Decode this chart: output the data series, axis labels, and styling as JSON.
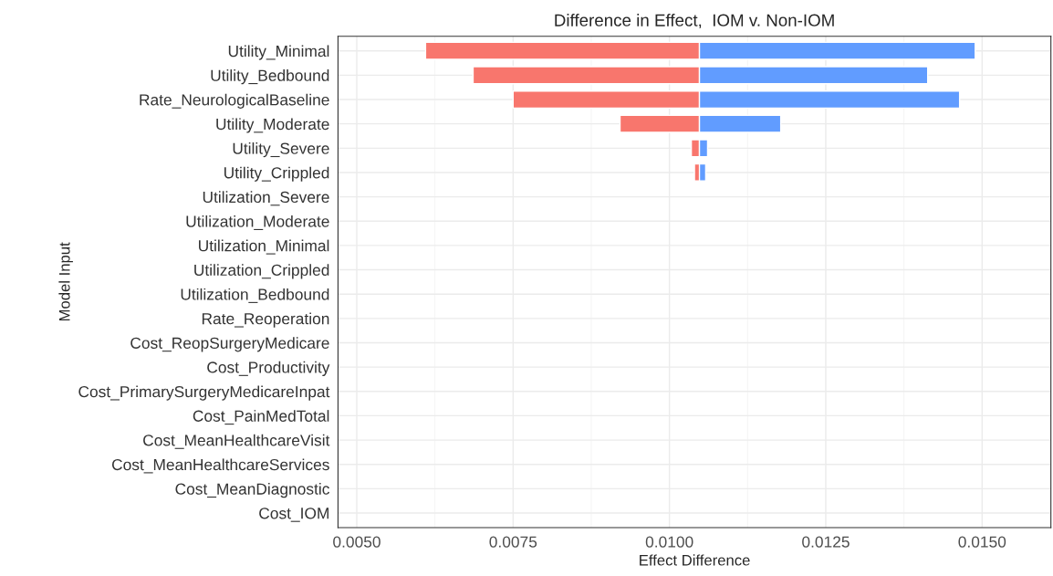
{
  "chart_data": {
    "type": "bar",
    "orientation": "horizontal",
    "title": "Difference in Effect,  IOM v. Non-IOM",
    "xlabel": "Effect Difference",
    "ylabel": "Model Input",
    "categories": [
      "Utility_Minimal",
      "Utility_Bedbound",
      "Rate_NeurologicalBaseline",
      "Utility_Moderate",
      "Utility_Severe",
      "Utility_Crippled",
      "Utilization_Severe",
      "Utilization_Moderate",
      "Utilization_Minimal",
      "Utilization_Crippled",
      "Utilization_Bedbound",
      "Rate_Reoperation",
      "Cost_ReopSurgeryMedicare",
      "Cost_Productivity",
      "Cost_PrimarySurgeryMedicareInpat",
      "Cost_PainMedTotal",
      "Cost_MeanHealthcareVisit",
      "Cost_MeanHealthcareServices",
      "Cost_MeanDiagnostic",
      "Cost_IOM"
    ],
    "series": [
      {
        "color": "#f8766d",
        "base": [
          0.0061,
          0.00686,
          0.0075,
          0.00921,
          0.01035,
          0.0104,
          null,
          null,
          null,
          null,
          null,
          null,
          null,
          null,
          null,
          null,
          null,
          null,
          null,
          null
        ],
        "values": [
          0.00438,
          0.00362,
          0.00298,
          0.00127,
          0.00013,
          0.0001,
          null,
          null,
          null,
          null,
          null,
          null,
          null,
          null,
          null,
          null,
          null,
          null,
          null,
          null
        ]
      },
      {
        "color": "#619cff",
        "base": [
          0.01048,
          0.01048,
          0.01048,
          0.01048,
          0.01048,
          0.01048,
          null,
          null,
          null,
          null,
          null,
          null,
          null,
          null,
          null,
          null,
          null,
          null,
          null,
          null
        ],
        "values": [
          0.00441,
          0.00365,
          0.00416,
          0.0013,
          0.00013,
          0.0001,
          null,
          null,
          null,
          null,
          null,
          null,
          null,
          null,
          null,
          null,
          null,
          null,
          null,
          null
        ]
      }
    ],
    "xlim": [
      0.0047,
      0.0161
    ],
    "xticks": [
      {
        "value": 0.005,
        "label": "0.0050"
      },
      {
        "value": 0.0075,
        "label": "0.0075"
      },
      {
        "value": 0.01,
        "label": "0.0100"
      },
      {
        "value": 0.0125,
        "label": "0.0125"
      },
      {
        "value": 0.015,
        "label": "0.0150"
      }
    ],
    "grid": true,
    "legend": false
  }
}
